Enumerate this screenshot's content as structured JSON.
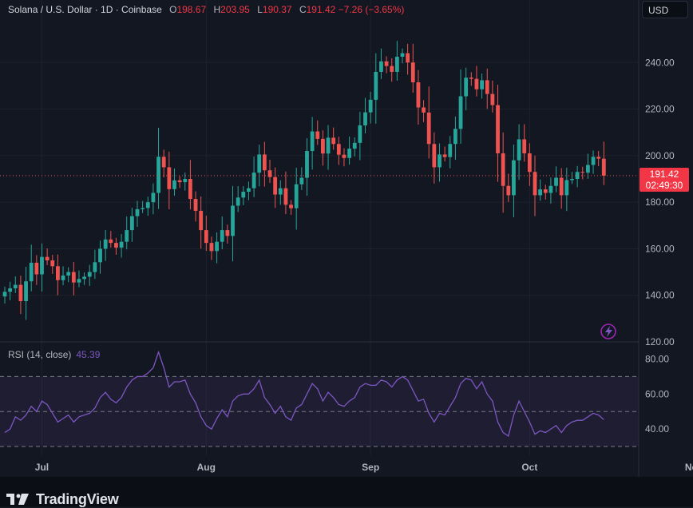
{
  "header": {
    "title": "Solana / U.S. Dollar · 1D · Coinbase",
    "o_label": "O",
    "o_value": "198.67",
    "h_label": "H",
    "h_value": "203.95",
    "l_label": "L",
    "l_value": "190.37",
    "c_label": "C",
    "c_value": "191.42",
    "change": "−7.26 (−3.65%)",
    "currency": "USD"
  },
  "price_tag": {
    "price": "191.42",
    "countdown": "02:49:30"
  },
  "rsi": {
    "label": "RSI (14, close)",
    "value": "45.39"
  },
  "brand": {
    "name": "TradingView"
  },
  "colors": {
    "up": "#26a69a",
    "down": "#ef5350",
    "rsi_line": "#7e57c2",
    "background": "#131722"
  },
  "chart_data": [
    {
      "type": "candlestick",
      "title": "Solana / U.S. Dollar · 1D · Coinbase",
      "ylim": [
        120,
        260
      ],
      "y_ticks": [
        "240.00",
        "220.00",
        "200.00",
        "180.00",
        "160.00",
        "140.00",
        "120.00"
      ],
      "x_ticks": [
        "Jul",
        "Aug",
        "Sep",
        "Oct",
        "Nov"
      ],
      "x_start": "2024-06-24",
      "closes": [
        141.5,
        143,
        144.5,
        137.5,
        146,
        154,
        149,
        156.5,
        155,
        152.5,
        146.5,
        148.5,
        150,
        145.5,
        147,
        148,
        150,
        154.2,
        160,
        164,
        162.5,
        160.5,
        163,
        168,
        174,
        177,
        177.5,
        180,
        184,
        199.5,
        195,
        185.6,
        189.4,
        188.6,
        190,
        181.4,
        176.3,
        168,
        162.5,
        159,
        163,
        168,
        165.5,
        178.5,
        182,
        184.5,
        186,
        192.7,
        200.5,
        193.7,
        190.8,
        183.3,
        186,
        178.9,
        177.4,
        187.7,
        190.5,
        202,
        210.4,
        207.2,
        200.9,
        207.7,
        205,
        200.4,
        199,
        203,
        205.5,
        213,
        218.6,
        224,
        236,
        240.5,
        238.5,
        236,
        242.5,
        244,
        240,
        231.5,
        220.7,
        218.5,
        205,
        195,
        200.5,
        199.4,
        205,
        211.5,
        225.5,
        233.5,
        233,
        228.5,
        232.4,
        226.5,
        221.7,
        201,
        187,
        183,
        198,
        207,
        201,
        193,
        183,
        185.5,
        184,
        187,
        190.5,
        183,
        189.5,
        190,
        193,
        192.7,
        196,
        199.5,
        198.7,
        191.4
      ],
      "rsi_values": [
        38,
        40,
        47,
        45,
        48,
        53,
        50,
        56,
        54,
        49,
        44,
        46,
        48,
        44,
        47,
        48,
        49,
        52,
        58,
        61,
        57,
        55,
        58,
        64,
        68,
        70,
        70,
        72,
        75,
        84,
        75,
        64,
        67,
        67,
        68,
        60,
        55,
        47,
        42,
        40,
        46,
        51,
        47,
        56,
        59,
        60,
        60,
        63,
        68,
        58,
        54,
        49,
        53,
        47,
        45,
        52,
        54,
        60,
        66,
        63,
        56,
        61,
        58,
        54,
        53,
        56,
        58,
        64,
        66,
        65,
        65,
        68,
        67,
        64,
        68,
        70,
        68,
        62,
        56,
        57,
        49,
        44,
        49,
        48,
        53,
        58,
        66,
        69,
        68,
        63,
        67,
        60,
        56,
        44,
        38,
        36,
        48,
        56,
        50,
        44,
        37,
        39,
        38,
        40,
        42,
        38,
        42,
        44,
        45,
        45,
        47,
        49,
        48,
        45.4
      ],
      "rsi_ylim": [
        25,
        88
      ],
      "rsi_ticks": [
        "80.00",
        "60.00",
        "40.00"
      ],
      "rsi_bands": [
        70,
        50,
        30
      ]
    }
  ]
}
